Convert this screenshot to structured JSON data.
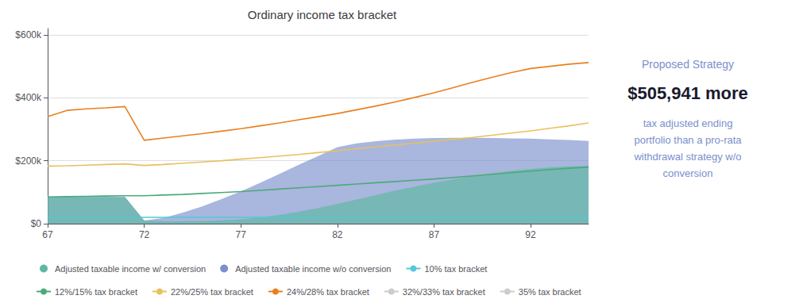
{
  "chart_data": {
    "type": "line",
    "title": "Ordinary income tax bracket",
    "x": [
      67,
      68,
      69,
      70,
      71,
      72,
      73,
      74,
      75,
      76,
      77,
      78,
      79,
      80,
      81,
      82,
      83,
      84,
      85,
      86,
      87,
      88,
      89,
      90,
      91,
      92,
      93,
      94,
      95
    ],
    "xlim": [
      67,
      95
    ],
    "xticks": [
      67,
      72,
      77,
      82,
      87,
      92
    ],
    "ylim": [
      0,
      620000
    ],
    "yticks": [
      {
        "value": 0,
        "label": "$0"
      },
      {
        "value": 200000,
        "label": "$200k"
      },
      {
        "value": 400000,
        "label": "$400k"
      },
      {
        "value": 600000,
        "label": "$600k"
      }
    ],
    "grid": true,
    "legend": "lower left",
    "series": [
      {
        "name": "Adjusted taxable income w/ conversion",
        "type": "area",
        "color": "#5cb8a0",
        "values": [
          85000,
          85000,
          85000,
          85000,
          85000,
          10000,
          8000,
          8000,
          9000,
          11000,
          14000,
          20000,
          28000,
          38000,
          50000,
          63000,
          77000,
          91000,
          105000,
          118000,
          130000,
          141000,
          151000,
          160000,
          168000,
          174000,
          179000,
          182000,
          184000
        ]
      },
      {
        "name": "Adjusted taxable income w/o conversion",
        "type": "area",
        "color": "#7b8fcc",
        "values": [
          85000,
          85000,
          85000,
          85000,
          85000,
          10000,
          18000,
          35000,
          55000,
          78000,
          103000,
          130000,
          158000,
          187000,
          215000,
          243000,
          255000,
          262000,
          267000,
          270000,
          272000,
          273000,
          273000,
          272000,
          271000,
          270000,
          268000,
          266000,
          263000
        ]
      },
      {
        "name": "10% tax bracket",
        "type": "line",
        "color": "#54c8d8",
        "values": [
          20000,
          20000,
          20000,
          20000,
          20000,
          20000,
          20000,
          20000,
          20000,
          20000,
          20000,
          20000,
          20000,
          20000,
          20000,
          20000,
          20000,
          20000,
          20000,
          20000,
          20000,
          20000,
          20000,
          20000,
          20000,
          20000,
          20000,
          20000,
          20000
        ]
      },
      {
        "name": "12%/15% tax bracket",
        "type": "line",
        "color": "#4caa78",
        "values": [
          85000,
          86000,
          87000,
          88000,
          89000,
          89000,
          91000,
          93000,
          96000,
          99000,
          102000,
          106000,
          110000,
          114000,
          118000,
          122000,
          126000,
          130000,
          134000,
          138000,
          142000,
          147000,
          152000,
          157000,
          162000,
          167000,
          172000,
          176000,
          180000
        ]
      },
      {
        "name": "22%/25% tax bracket",
        "type": "line",
        "color": "#e8c060",
        "values": [
          183000,
          184000,
          186000,
          188000,
          190000,
          185000,
          188000,
          192000,
          196000,
          200000,
          205000,
          210000,
          215000,
          220000,
          226000,
          232000,
          238000,
          244000,
          250000,
          256000,
          262000,
          268000,
          274000,
          281000,
          288000,
          295000,
          303000,
          311000,
          320000
        ]
      },
      {
        "name": "24%/28% tax bracket",
        "type": "line",
        "color": "#e88020",
        "values": [
          340000,
          360000,
          365000,
          368000,
          372000,
          265000,
          272000,
          279000,
          286000,
          294000,
          302000,
          311000,
          320000,
          330000,
          340000,
          350000,
          362000,
          374000,
          387000,
          401000,
          416000,
          432000,
          449000,
          465000,
          480000,
          493000,
          500000,
          507000,
          512000
        ]
      },
      {
        "name": "32%/33% tax bracket",
        "type": "line",
        "color": "#cccccc",
        "values": [
          null,
          null,
          null,
          null,
          null,
          null,
          null,
          null,
          null,
          null,
          null,
          null,
          null,
          null,
          null,
          null,
          null,
          null,
          null,
          null,
          null,
          null,
          null,
          null,
          null,
          null,
          null,
          null,
          null
        ]
      },
      {
        "name": "35% tax bracket",
        "type": "line",
        "color": "#cccccc",
        "values": [
          null,
          null,
          null,
          null,
          null,
          null,
          null,
          null,
          null,
          null,
          null,
          null,
          null,
          null,
          null,
          null,
          null,
          null,
          null,
          null,
          null,
          null,
          null,
          null,
          null,
          null,
          null,
          null,
          null
        ]
      }
    ],
    "annotations": [
      "Proposed Strategy",
      "$505,941 more",
      "tax adjusted ending\nportfolio than a pro-rata\nwithdrawal strategy w/o\nconversion"
    ]
  }
}
